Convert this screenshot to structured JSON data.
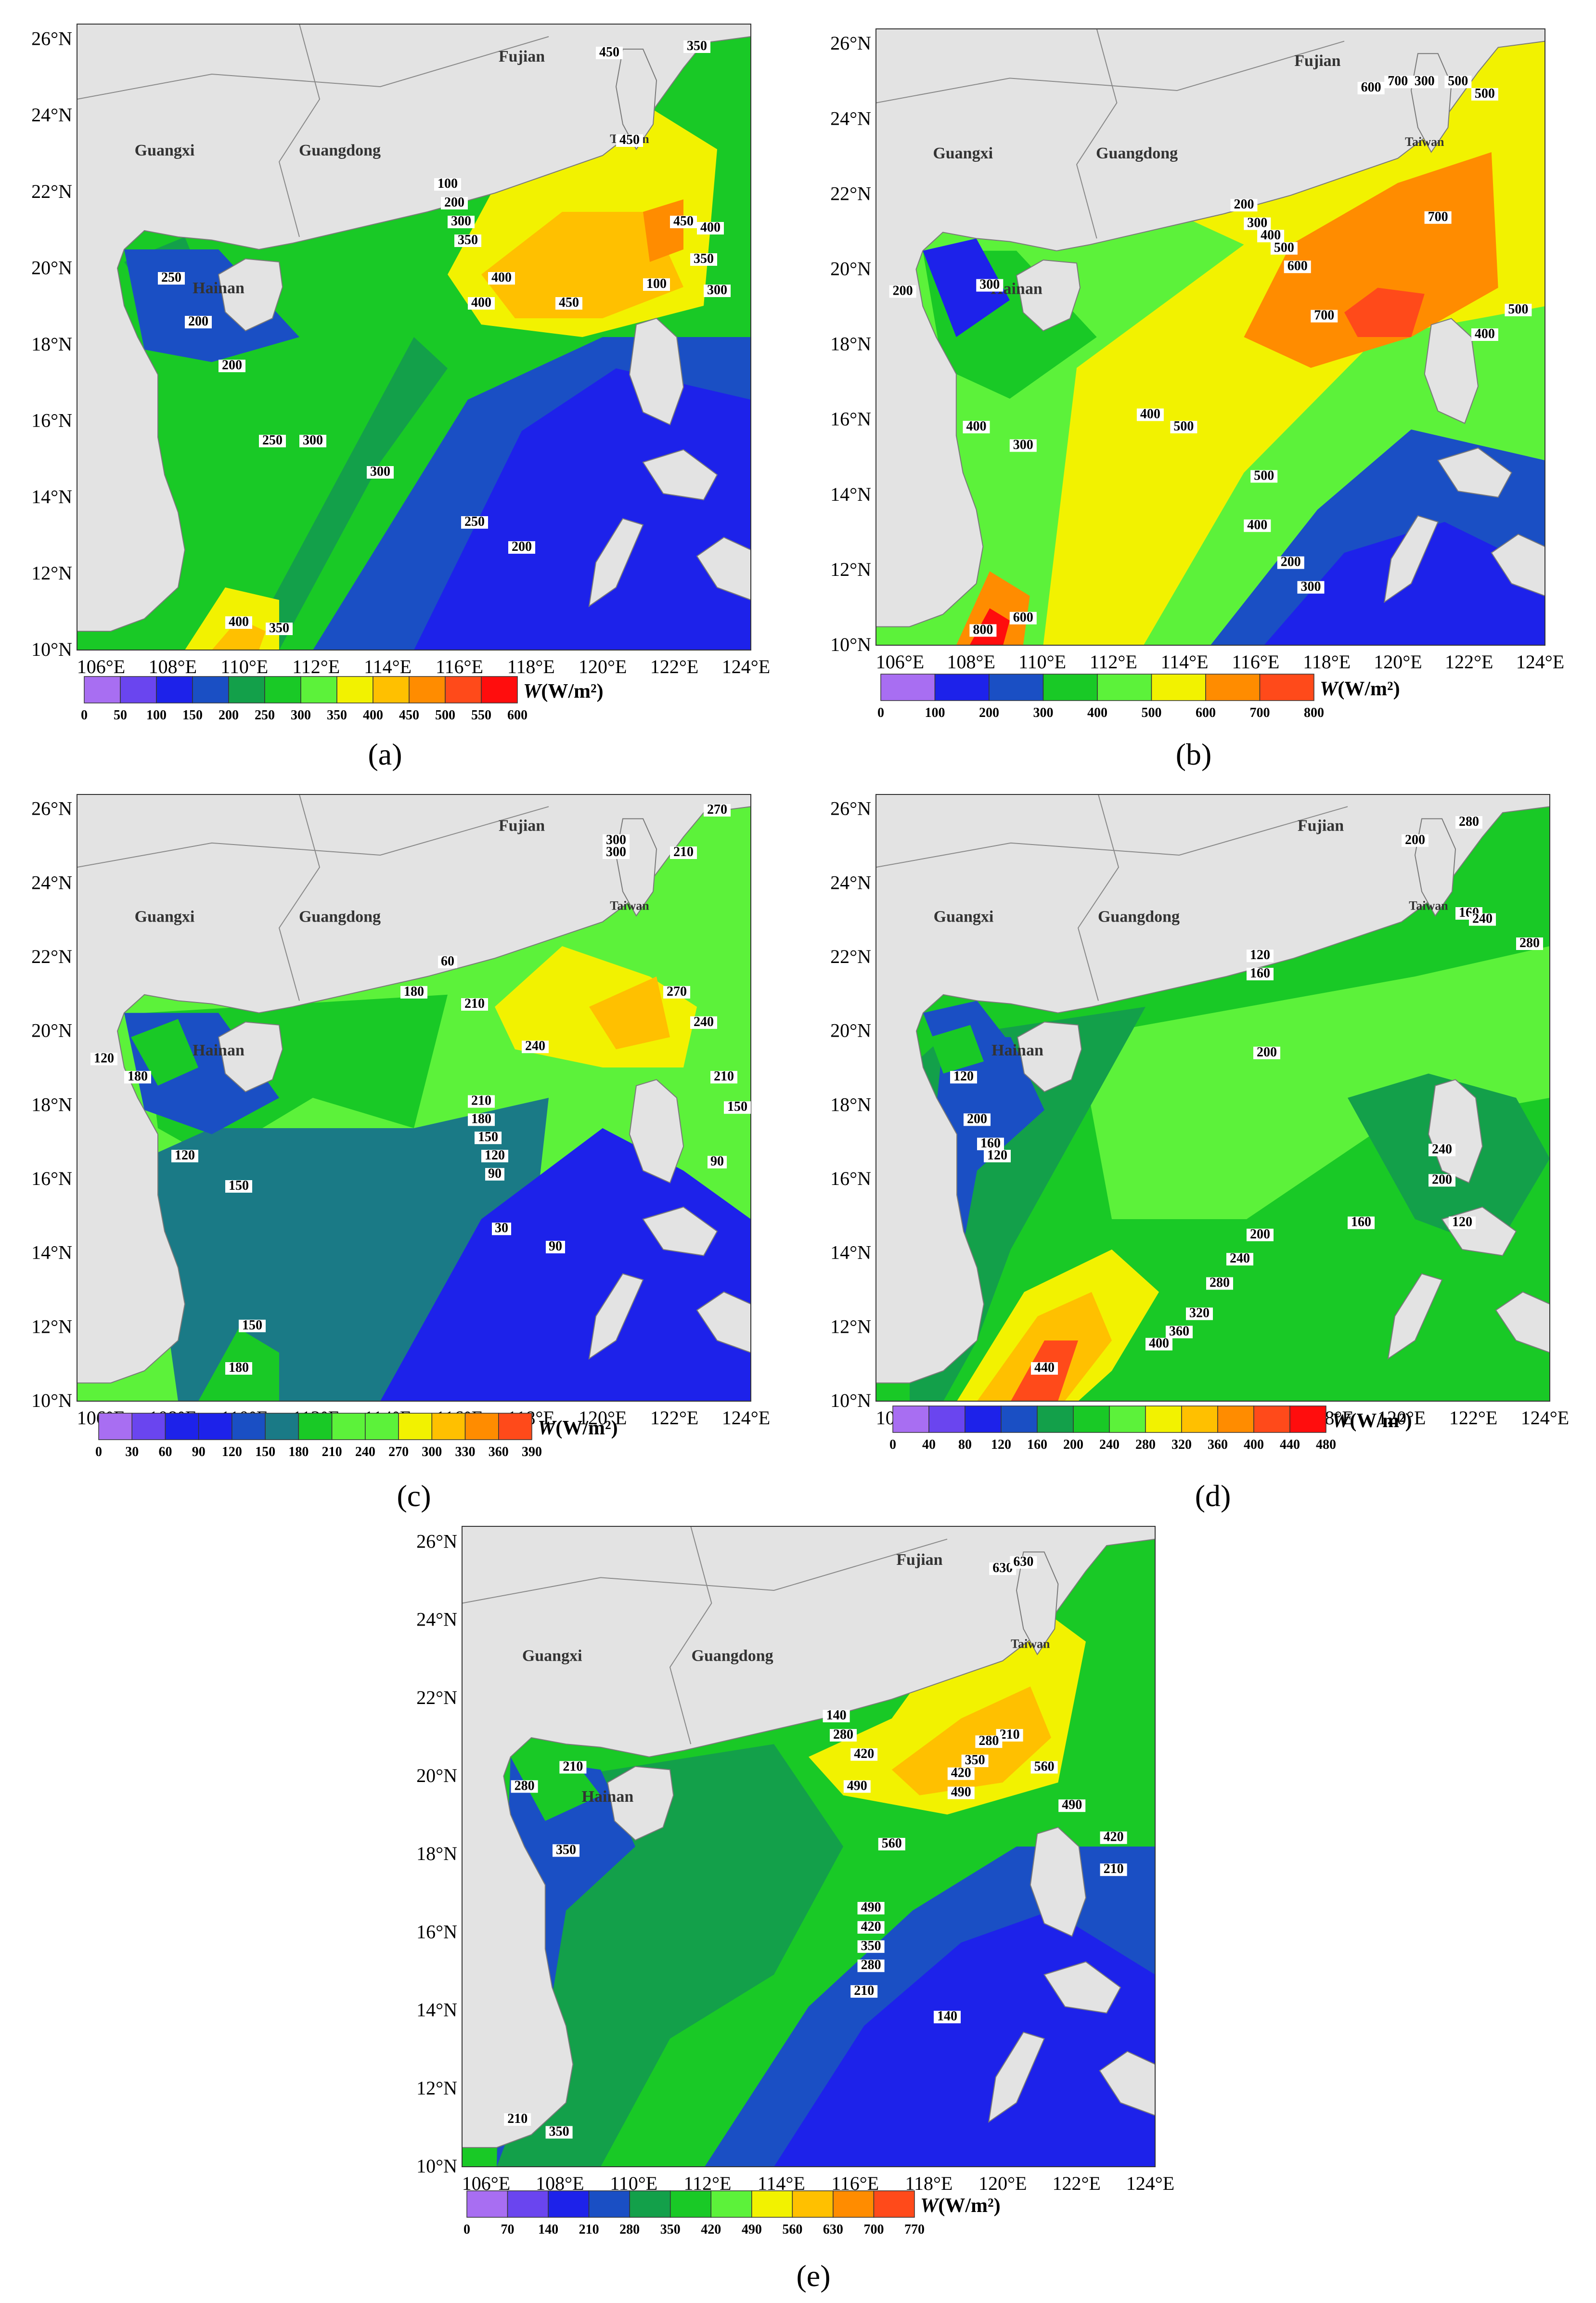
{
  "map_common": {
    "lat_labels": [
      "10°N",
      "12°N",
      "14°N",
      "16°N",
      "18°N",
      "20°N",
      "22°N",
      "24°N",
      "26°N"
    ],
    "lon_labels": [
      "106°E",
      "108°E",
      "110°E",
      "112°E",
      "114°E",
      "116°E",
      "118°E",
      "120°E",
      "122°E",
      "124°E"
    ],
    "places": {
      "fujian": "Fujian",
      "guangxi": "Guangxi",
      "guangdong": "Guangdong",
      "hainan": "Hainan",
      "taiwan": "Taiwan"
    },
    "legend_unit_symbol": "W",
    "legend_unit": "(W/m²)"
  },
  "colors": {
    "land": "#e3e3e3",
    "c0": "#a86ef2",
    "c1": "#6a45ef",
    "c2": "#1d22ea",
    "c3": "#1a4fc4",
    "c4": "#13a04a",
    "c5": "#19c926",
    "c6": "#5cf23a",
    "c7": "#f2f200",
    "c8": "#ffc000",
    "c9": "#ff8c00",
    "c10": "#ff4a1a",
    "c11": "#ff0d0d",
    "teal": "#1a7a86"
  },
  "panels": [
    {
      "caption": "(a)",
      "legend_ticks": [
        "0",
        "50",
        "100",
        "150",
        "200",
        "250",
        "300",
        "350",
        "400",
        "450",
        "500",
        "550",
        "600"
      ],
      "contour_labels": [
        "350",
        "450",
        "450",
        "450",
        "400",
        "400",
        "100",
        "200",
        "300",
        "350",
        "400",
        "350",
        "300",
        "450",
        "250",
        "200",
        "200",
        "250",
        "300",
        "300",
        "250",
        "200",
        "100",
        "400",
        "350"
      ]
    },
    {
      "caption": "(b)",
      "legend_ticks": [
        "0",
        "100",
        "200",
        "300",
        "400",
        "500",
        "600",
        "700",
        "800"
      ],
      "contour_labels": [
        "600",
        "700",
        "300",
        "500",
        "500",
        "200",
        "300",
        "400",
        "500",
        "600",
        "700",
        "700",
        "500",
        "200",
        "300",
        "400",
        "300",
        "400",
        "500",
        "500",
        "400",
        "200",
        "300",
        "800",
        "600",
        "400"
      ]
    },
    {
      "caption": "(c)",
      "legend_ticks": [
        "0",
        "30",
        "60",
        "90",
        "120",
        "150",
        "180",
        "210",
        "240",
        "270",
        "300",
        "330",
        "360",
        "390"
      ],
      "contour_labels": [
        "270",
        "210",
        "300",
        "300",
        "60",
        "180",
        "210",
        "240",
        "270",
        "240",
        "210",
        "120",
        "180",
        "210",
        "180",
        "150",
        "120",
        "90",
        "150",
        "90",
        "120",
        "150",
        "30",
        "90",
        "150",
        "180"
      ]
    },
    {
      "caption": "(d)",
      "legend_ticks": [
        "0",
        "40",
        "80",
        "120",
        "160",
        "200",
        "240",
        "280",
        "320",
        "360",
        "400",
        "440",
        "480"
      ],
      "contour_labels": [
        "280",
        "200",
        "160",
        "240",
        "280",
        "120",
        "160",
        "120",
        "200",
        "200",
        "240",
        "200",
        "120",
        "160",
        "120",
        "160",
        "200",
        "240",
        "280",
        "320",
        "360",
        "400",
        "440"
      ]
    },
    {
      "caption": "(e)",
      "legend_ticks": [
        "0",
        "70",
        "140",
        "210",
        "280",
        "350",
        "420",
        "490",
        "560",
        "630",
        "700",
        "770"
      ],
      "contour_labels": [
        "630",
        "630",
        "140",
        "280",
        "420",
        "490",
        "210",
        "280",
        "350",
        "420",
        "490",
        "560",
        "490",
        "560",
        "420",
        "210",
        "280",
        "210",
        "350",
        "490",
        "420",
        "350",
        "280",
        "210",
        "140",
        "210",
        "350"
      ]
    }
  ]
}
